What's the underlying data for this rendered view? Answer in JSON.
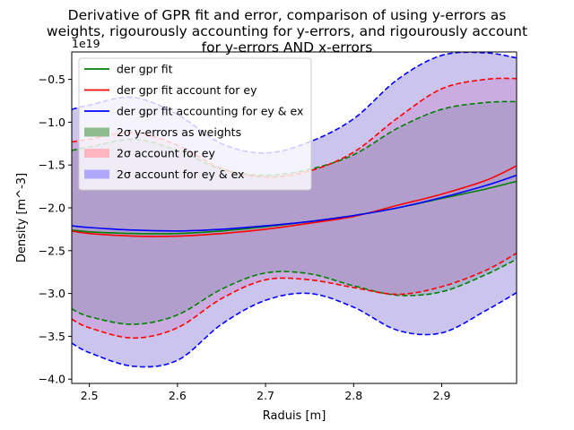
{
  "chart_data": {
    "type": "line",
    "title_lines": [
      "Derivative of GPR fit and error, comparison of using y-errors as",
      "weights, rigourously accounting for y-errors, and rigourously account",
      "for y-errors AND x-errors"
    ],
    "xlabel": "Raduis [m]",
    "ylabel": "Density [m^-3]",
    "y_offset_label": "1e19",
    "xlim": [
      2.48,
      2.985
    ],
    "ylim": [
      -4.05,
      -0.18
    ],
    "x_ticks": [
      2.5,
      2.6,
      2.7,
      2.8,
      2.9
    ],
    "x_tick_labels": [
      "2.5",
      "2.6",
      "2.7",
      "2.8",
      "2.9"
    ],
    "y_ticks": [
      -4.0,
      -3.5,
      -3.0,
      -2.5,
      -2.0,
      -1.5,
      -1.0,
      -0.5
    ],
    "y_tick_labels": [
      "−4.0",
      "−3.5",
      "−3.0",
      "−2.5",
      "−2.0",
      "−1.5",
      "−1.0",
      "−0.5"
    ],
    "grid": false,
    "legend_position": "top-left",
    "x": [
      2.48,
      2.5,
      2.55,
      2.6,
      2.65,
      2.7,
      2.75,
      2.8,
      2.85,
      2.9,
      2.95,
      2.985
    ],
    "series": [
      {
        "name": "der gpr fit",
        "color": "#008000",
        "values": [
          -2.26,
          -2.28,
          -2.3,
          -2.3,
          -2.27,
          -2.22,
          -2.16,
          -2.09,
          -2.0,
          -1.89,
          -1.78,
          -1.69
        ],
        "lower": [
          -3.18,
          -3.27,
          -3.36,
          -3.25,
          -2.95,
          -2.76,
          -2.77,
          -2.91,
          -3.02,
          -2.98,
          -2.78,
          -2.6
        ],
        "upper": [
          -1.33,
          -1.29,
          -1.2,
          -1.33,
          -1.55,
          -1.62,
          -1.55,
          -1.38,
          -1.07,
          -0.85,
          -0.77,
          -0.76
        ]
      },
      {
        "name": "der gpr fit account for ey",
        "color": "#ff0000",
        "values": [
          -2.27,
          -2.3,
          -2.33,
          -2.33,
          -2.3,
          -2.25,
          -2.18,
          -2.1,
          -1.97,
          -1.84,
          -1.68,
          -1.51
        ],
        "lower": [
          -3.3,
          -3.4,
          -3.52,
          -3.4,
          -3.06,
          -2.84,
          -2.84,
          -2.93,
          -3.01,
          -2.92,
          -2.73,
          -2.53
        ],
        "upper": [
          -1.23,
          -1.2,
          -1.12,
          -1.27,
          -1.54,
          -1.64,
          -1.57,
          -1.35,
          -0.95,
          -0.61,
          -0.5,
          -0.49
        ]
      },
      {
        "name": "der gpr fit accounting for ey & ex",
        "color": "#0000ff",
        "values": [
          -2.21,
          -2.23,
          -2.26,
          -2.27,
          -2.25,
          -2.21,
          -2.16,
          -2.09,
          -2.0,
          -1.88,
          -1.74,
          -1.62
        ],
        "lower": [
          -3.58,
          -3.69,
          -3.85,
          -3.78,
          -3.36,
          -3.08,
          -3.0,
          -3.16,
          -3.43,
          -3.46,
          -3.2,
          -2.99
        ],
        "upper": [
          -0.85,
          -0.8,
          -0.71,
          -0.91,
          -1.25,
          -1.36,
          -1.23,
          -0.96,
          -0.5,
          -0.22,
          -0.19,
          -0.25
        ]
      }
    ],
    "bands": [
      {
        "name": "2σ y-errors as weights",
        "series_index": 0,
        "fill": "#2e8b57",
        "opacity": 0.25
      },
      {
        "name": "2σ account for ey",
        "series_index": 1,
        "fill": "#ff69b4",
        "opacity": 0.25
      },
      {
        "name": "2σ account for ey & ex",
        "series_index": 2,
        "fill": "#6a5acd",
        "opacity": 0.35
      }
    ],
    "legend": [
      {
        "label": "der gpr fit",
        "kind": "line",
        "color": "#008000"
      },
      {
        "label": "der gpr fit account for ey",
        "kind": "line",
        "color": "#ff0000"
      },
      {
        "label": "der gpr fit accounting for ey & ex",
        "kind": "line",
        "color": "#0000ff"
      },
      {
        "label": "2σ y-errors as weights",
        "kind": "patch",
        "color": "#8fbc8f"
      },
      {
        "label": "2σ account for ey",
        "kind": "patch",
        "color": "#ffb6c1"
      },
      {
        "label": "2σ account for ey & ex",
        "kind": "patch",
        "color": "#b0a8ff"
      }
    ]
  }
}
